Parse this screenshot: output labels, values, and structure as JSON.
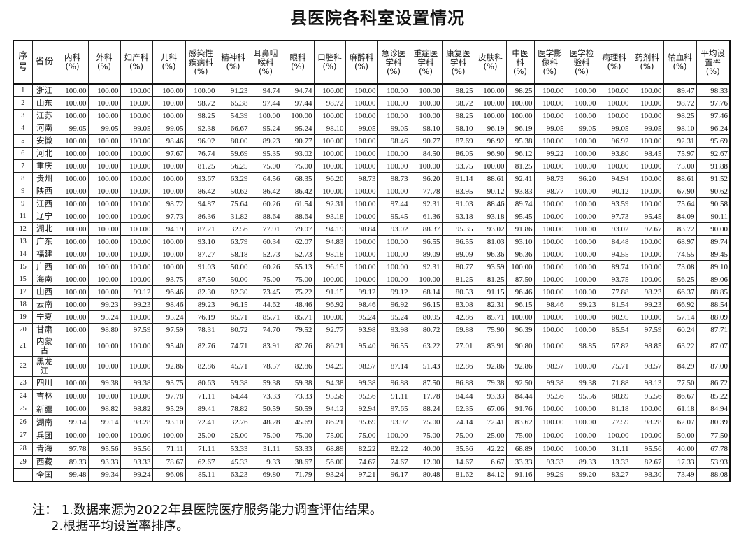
{
  "title": "县医院各科室设置情况",
  "columns": [
    "序\n号",
    "省份",
    "内科\n(%)",
    "外科\n(%)",
    "妇产科\n(%)",
    "儿科\n(%)",
    "感染性\n疾病科\n(%)",
    "精神科\n(%)",
    "耳鼻咽\n喉科\n(%)",
    "眼科\n(%)",
    "口腔科\n(%)",
    "麻醉科\n(%)",
    "急诊医\n学科\n(%)",
    "重症医\n学科\n(%)",
    "康复医\n学科\n(%)",
    "皮肤科\n(%)",
    "中医\n科\n(%)",
    "医学影\n像科\n(%)",
    "医学检\n验科\n(%)",
    "病理科\n(%)",
    "药剂科\n(%)",
    "输血科\n(%)",
    "平均设\n置率\n(%)"
  ],
  "rows": [
    [
      "1",
      "浙江",
      "100.00",
      "100.00",
      "100.00",
      "100.00",
      "100.00",
      "91.23",
      "94.74",
      "94.74",
      "100.00",
      "100.00",
      "100.00",
      "100.00",
      "98.25",
      "100.00",
      "98.25",
      "100.00",
      "100.00",
      "100.00",
      "100.00",
      "89.47",
      "98.33"
    ],
    [
      "2",
      "山东",
      "100.00",
      "100.00",
      "100.00",
      "100.00",
      "98.72",
      "65.38",
      "97.44",
      "97.44",
      "98.72",
      "100.00",
      "100.00",
      "100.00",
      "98.72",
      "100.00",
      "100.00",
      "100.00",
      "100.00",
      "100.00",
      "100.00",
      "98.72",
      "97.76"
    ],
    [
      "3",
      "江苏",
      "100.00",
      "100.00",
      "100.00",
      "100.00",
      "98.25",
      "54.39",
      "100.00",
      "100.00",
      "100.00",
      "100.00",
      "100.00",
      "100.00",
      "98.25",
      "100.00",
      "100.00",
      "100.00",
      "100.00",
      "100.00",
      "100.00",
      "98.25",
      "97.46"
    ],
    [
      "4",
      "河南",
      "99.05",
      "99.05",
      "99.05",
      "99.05",
      "92.38",
      "66.67",
      "95.24",
      "95.24",
      "98.10",
      "99.05",
      "99.05",
      "98.10",
      "98.10",
      "96.19",
      "96.19",
      "99.05",
      "99.05",
      "99.05",
      "99.05",
      "98.10",
      "96.24"
    ],
    [
      "5",
      "安徽",
      "100.00",
      "100.00",
      "100.00",
      "98.46",
      "96.92",
      "80.00",
      "89.23",
      "90.77",
      "100.00",
      "100.00",
      "98.46",
      "90.77",
      "87.69",
      "96.92",
      "95.38",
      "100.00",
      "100.00",
      "96.92",
      "100.00",
      "92.31",
      "95.69"
    ],
    [
      "6",
      "河北",
      "100.00",
      "100.00",
      "100.00",
      "97.67",
      "76.74",
      "59.69",
      "95.35",
      "93.02",
      "100.00",
      "100.00",
      "100.00",
      "84.50",
      "86.05",
      "96.90",
      "96.12",
      "99.22",
      "100.00",
      "93.80",
      "98.45",
      "75.97",
      "92.67"
    ],
    [
      "7",
      "重庆",
      "100.00",
      "100.00",
      "100.00",
      "100.00",
      "81.25",
      "56.25",
      "75.00",
      "75.00",
      "100.00",
      "100.00",
      "100.00",
      "100.00",
      "93.75",
      "100.00",
      "81.25",
      "100.00",
      "100.00",
      "100.00",
      "100.00",
      "75.00",
      "91.88"
    ],
    [
      "8",
      "贵州",
      "100.00",
      "100.00",
      "100.00",
      "100.00",
      "93.67",
      "63.29",
      "64.56",
      "68.35",
      "96.20",
      "98.73",
      "98.73",
      "96.20",
      "91.14",
      "88.61",
      "92.41",
      "98.73",
      "96.20",
      "94.94",
      "100.00",
      "88.61",
      "91.52"
    ],
    [
      "9",
      "陕西",
      "100.00",
      "100.00",
      "100.00",
      "100.00",
      "86.42",
      "50.62",
      "86.42",
      "86.42",
      "100.00",
      "100.00",
      "100.00",
      "77.78",
      "83.95",
      "90.12",
      "93.83",
      "98.77",
      "100.00",
      "90.12",
      "100.00",
      "67.90",
      "90.62"
    ],
    [
      "9",
      "江西",
      "100.00",
      "100.00",
      "100.00",
      "98.72",
      "94.87",
      "75.64",
      "60.26",
      "61.54",
      "92.31",
      "100.00",
      "97.44",
      "92.31",
      "91.03",
      "88.46",
      "89.74",
      "100.00",
      "100.00",
      "93.59",
      "100.00",
      "75.64",
      "90.58"
    ],
    [
      "11",
      "辽宁",
      "100.00",
      "100.00",
      "100.00",
      "97.73",
      "86.36",
      "31.82",
      "88.64",
      "88.64",
      "93.18",
      "100.00",
      "95.45",
      "61.36",
      "93.18",
      "93.18",
      "95.45",
      "100.00",
      "100.00",
      "97.73",
      "95.45",
      "84.09",
      "90.11"
    ],
    [
      "12",
      "湖北",
      "100.00",
      "100.00",
      "100.00",
      "94.19",
      "87.21",
      "32.56",
      "77.91",
      "79.07",
      "94.19",
      "98.84",
      "93.02",
      "88.37",
      "95.35",
      "93.02",
      "91.86",
      "100.00",
      "100.00",
      "93.02",
      "97.67",
      "83.72",
      "90.00"
    ],
    [
      "13",
      "广东",
      "100.00",
      "100.00",
      "100.00",
      "100.00",
      "93.10",
      "63.79",
      "60.34",
      "62.07",
      "94.83",
      "100.00",
      "100.00",
      "96.55",
      "96.55",
      "81.03",
      "93.10",
      "100.00",
      "100.00",
      "84.48",
      "100.00",
      "68.97",
      "89.74"
    ],
    [
      "14",
      "福建",
      "100.00",
      "100.00",
      "100.00",
      "100.00",
      "87.27",
      "58.18",
      "52.73",
      "52.73",
      "98.18",
      "100.00",
      "100.00",
      "89.09",
      "89.09",
      "96.36",
      "96.36",
      "100.00",
      "100.00",
      "94.55",
      "100.00",
      "74.55",
      "89.45"
    ],
    [
      "15",
      "广西",
      "100.00",
      "100.00",
      "100.00",
      "100.00",
      "91.03",
      "50.00",
      "60.26",
      "55.13",
      "96.15",
      "100.00",
      "100.00",
      "92.31",
      "80.77",
      "93.59",
      "100.00",
      "100.00",
      "100.00",
      "89.74",
      "100.00",
      "73.08",
      "89.10"
    ],
    [
      "15",
      "海南",
      "100.00",
      "100.00",
      "100.00",
      "93.75",
      "87.50",
      "50.00",
      "75.00",
      "75.00",
      "100.00",
      "100.00",
      "100.00",
      "100.00",
      "81.25",
      "81.25",
      "87.50",
      "100.00",
      "100.00",
      "93.75",
      "100.00",
      "56.25",
      "89.06"
    ],
    [
      "17",
      "山西",
      "100.00",
      "100.00",
      "99.12",
      "96.46",
      "82.30",
      "82.30",
      "73.45",
      "75.22",
      "91.15",
      "99.12",
      "99.12",
      "68.14",
      "80.53",
      "91.15",
      "96.46",
      "100.00",
      "100.00",
      "77.88",
      "98.23",
      "66.37",
      "88.85"
    ],
    [
      "18",
      "云南",
      "100.00",
      "99.23",
      "99.23",
      "98.46",
      "89.23",
      "96.15",
      "44.62",
      "48.46",
      "96.92",
      "98.46",
      "96.92",
      "96.15",
      "83.08",
      "82.31",
      "96.15",
      "98.46",
      "99.23",
      "81.54",
      "99.23",
      "66.92",
      "88.54"
    ],
    [
      "19",
      "宁夏",
      "100.00",
      "95.24",
      "100.00",
      "95.24",
      "76.19",
      "85.71",
      "85.71",
      "85.71",
      "100.00",
      "95.24",
      "95.24",
      "80.95",
      "42.86",
      "85.71",
      "100.00",
      "100.00",
      "100.00",
      "80.95",
      "100.00",
      "57.14",
      "88.09"
    ],
    [
      "20",
      "甘肃",
      "100.00",
      "98.80",
      "97.59",
      "97.59",
      "78.31",
      "80.72",
      "74.70",
      "79.52",
      "92.77",
      "93.98",
      "93.98",
      "80.72",
      "69.88",
      "75.90",
      "96.39",
      "100.00",
      "100.00",
      "85.54",
      "97.59",
      "60.24",
      "87.71"
    ],
    [
      "21",
      "内蒙古",
      "100.00",
      "100.00",
      "100.00",
      "95.40",
      "82.76",
      "74.71",
      "83.91",
      "82.76",
      "86.21",
      "95.40",
      "96.55",
      "63.22",
      "77.01",
      "83.91",
      "90.80",
      "100.00",
      "98.85",
      "67.82",
      "98.85",
      "63.22",
      "87.07"
    ],
    [
      "22",
      "黑龙江",
      "100.00",
      "100.00",
      "100.00",
      "92.86",
      "82.86",
      "45.71",
      "78.57",
      "82.86",
      "94.29",
      "98.57",
      "87.14",
      "51.43",
      "82.86",
      "92.86",
      "92.86",
      "98.57",
      "100.00",
      "75.71",
      "98.57",
      "84.29",
      "87.00"
    ],
    [
      "23",
      "四川",
      "100.00",
      "99.38",
      "99.38",
      "93.75",
      "80.63",
      "59.38",
      "59.38",
      "59.38",
      "94.38",
      "99.38",
      "96.88",
      "87.50",
      "86.88",
      "79.38",
      "92.50",
      "99.38",
      "99.38",
      "71.88",
      "98.13",
      "77.50",
      "86.72"
    ],
    [
      "24",
      "吉林",
      "100.00",
      "100.00",
      "100.00",
      "97.78",
      "71.11",
      "64.44",
      "73.33",
      "73.33",
      "95.56",
      "95.56",
      "91.11",
      "17.78",
      "84.44",
      "93.33",
      "84.44",
      "95.56",
      "95.56",
      "88.89",
      "95.56",
      "86.67",
      "85.22"
    ],
    [
      "25",
      "新疆",
      "100.00",
      "98.82",
      "98.82",
      "95.29",
      "89.41",
      "78.82",
      "50.59",
      "50.59",
      "94.12",
      "92.94",
      "97.65",
      "88.24",
      "62.35",
      "67.06",
      "91.76",
      "100.00",
      "100.00",
      "81.18",
      "100.00",
      "61.18",
      "84.94"
    ],
    [
      "26",
      "湖南",
      "99.14",
      "99.14",
      "98.28",
      "93.10",
      "72.41",
      "32.76",
      "48.28",
      "45.69",
      "86.21",
      "95.69",
      "93.97",
      "75.00",
      "74.14",
      "72.41",
      "83.62",
      "100.00",
      "100.00",
      "77.59",
      "98.28",
      "62.07",
      "80.39"
    ],
    [
      "27",
      "兵团",
      "100.00",
      "100.00",
      "100.00",
      "100.00",
      "25.00",
      "25.00",
      "75.00",
      "75.00",
      "75.00",
      "75.00",
      "100.00",
      "75.00",
      "75.00",
      "25.00",
      "75.00",
      "100.00",
      "100.00",
      "100.00",
      "100.00",
      "50.00",
      "77.50"
    ],
    [
      "28",
      "青海",
      "97.78",
      "95.56",
      "95.56",
      "71.11",
      "71.11",
      "53.33",
      "31.11",
      "53.33",
      "68.89",
      "82.22",
      "82.22",
      "40.00",
      "35.56",
      "42.22",
      "68.89",
      "100.00",
      "100.00",
      "31.11",
      "95.56",
      "40.00",
      "67.78"
    ],
    [
      "29",
      "西藏",
      "89.33",
      "93.33",
      "93.33",
      "78.67",
      "62.67",
      "45.33",
      "9.33",
      "38.67",
      "56.00",
      "74.67",
      "74.67",
      "12.00",
      "14.67",
      "6.67",
      "33.33",
      "93.33",
      "89.33",
      "13.33",
      "82.67",
      "17.33",
      "53.93"
    ],
    [
      "",
      "全国",
      "99.48",
      "99.34",
      "99.24",
      "96.08",
      "85.11",
      "63.23",
      "69.80",
      "71.79",
      "93.24",
      "97.21",
      "96.17",
      "80.48",
      "81.62",
      "84.12",
      "91.16",
      "99.29",
      "99.20",
      "83.27",
      "98.30",
      "73.49",
      "88.08"
    ]
  ],
  "notes": {
    "note1": "注：  1.数据来源为2022年县医院医疗服务能力调查评估结果。",
    "note2": "2.根据平均设置率排序。"
  }
}
